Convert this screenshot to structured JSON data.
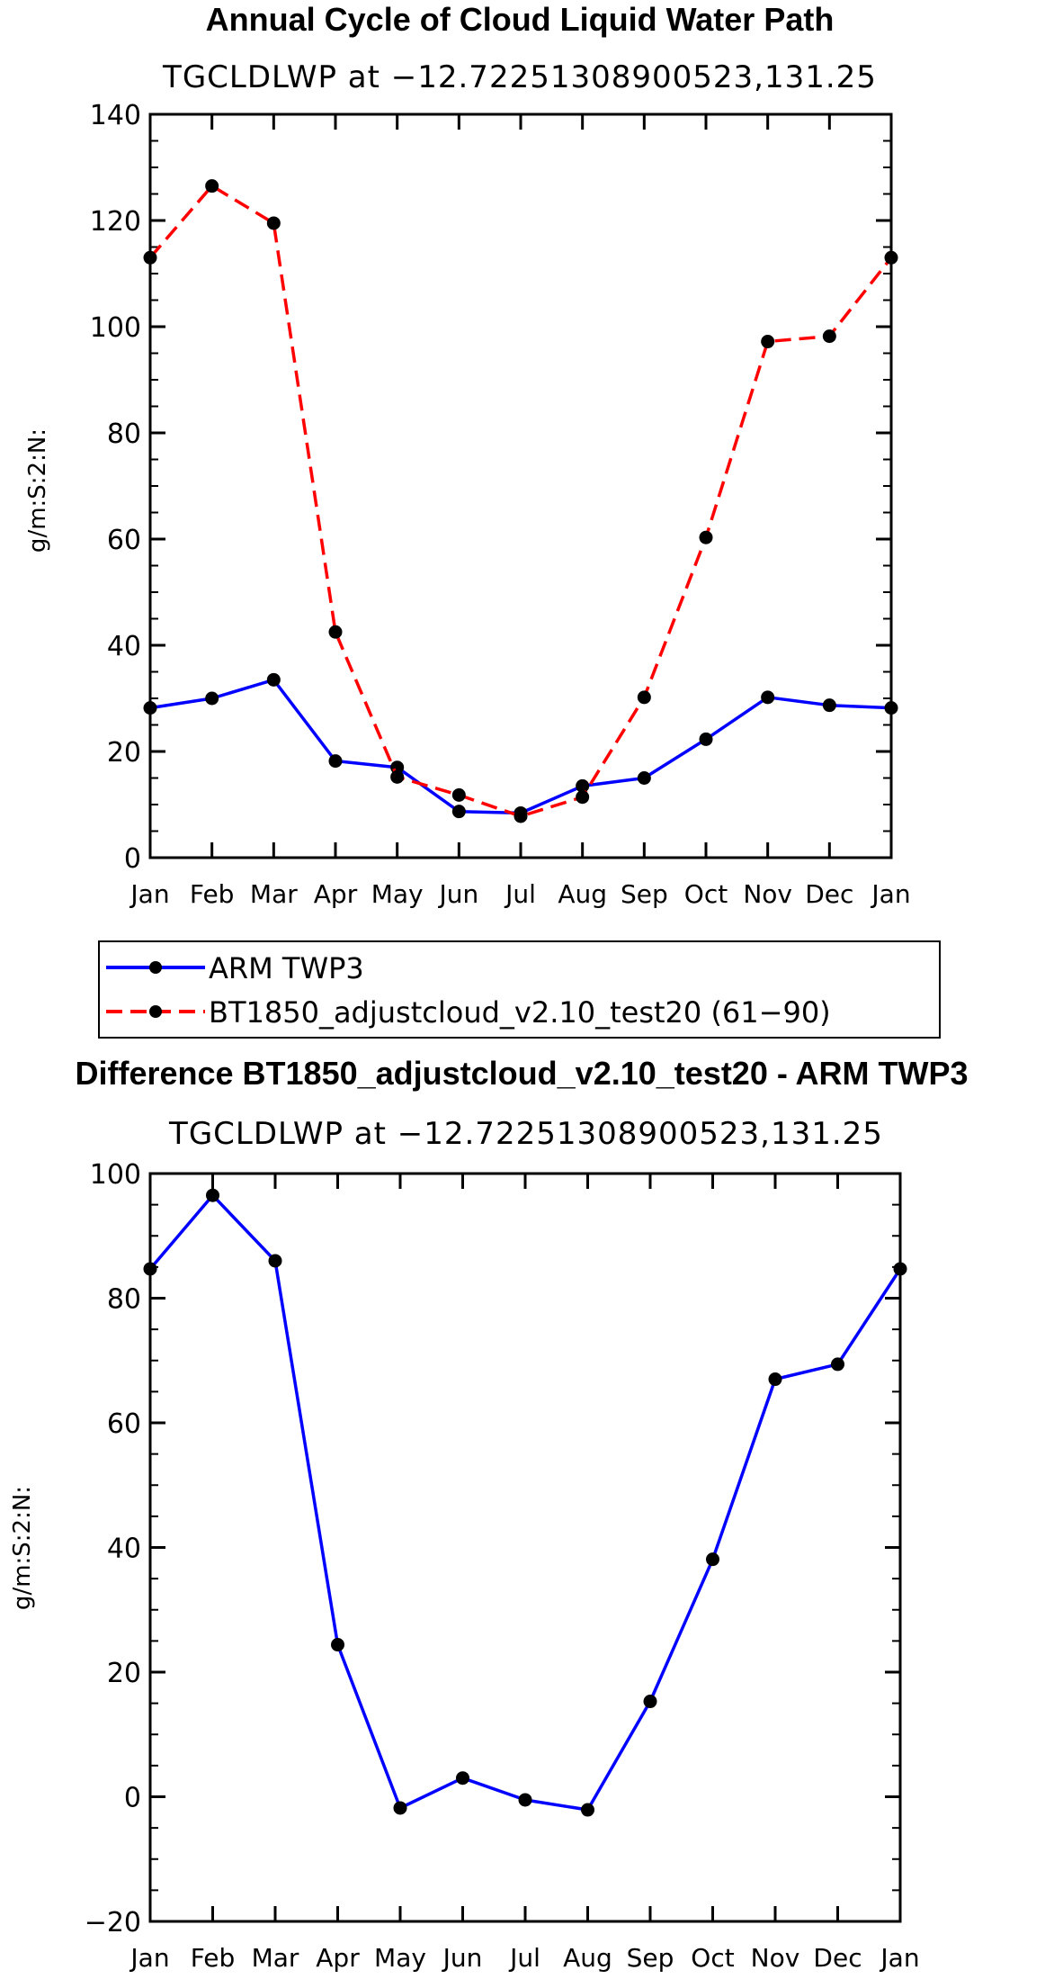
{
  "chart_data": [
    {
      "type": "line",
      "title": "Annual Cycle of Cloud Liquid Water Path",
      "subtitle": "TGCLDLWP at −12.72251308900523,131.25",
      "ylabel": "g/m:S:2:N:",
      "xlabel": "",
      "ylim": [
        0,
        140
      ],
      "yticks": [
        0,
        20,
        40,
        60,
        80,
        100,
        120,
        140
      ],
      "categories": [
        "Jan",
        "Feb",
        "Mar",
        "Apr",
        "May",
        "Jun",
        "Jul",
        "Aug",
        "Sep",
        "Oct",
        "Nov",
        "Dec",
        "Jan"
      ],
      "series": [
        {
          "name": "ARM TWP3",
          "color": "#0000ff",
          "style": "solid",
          "values": [
            28.2,
            30.0,
            33.5,
            18.2,
            17.0,
            8.7,
            8.4,
            13.5,
            15.0,
            22.3,
            30.2,
            28.7,
            28.2
          ]
        },
        {
          "name": "BT1850_adjustcloud_v2.10_test20 (61−90)",
          "color": "#ff0000",
          "style": "dashed",
          "values": [
            113.0,
            126.5,
            119.5,
            42.5,
            15.2,
            11.8,
            7.8,
            11.4,
            30.2,
            60.3,
            97.2,
            98.2,
            113.0
          ]
        }
      ],
      "legend": "below"
    },
    {
      "type": "line",
      "title": "Difference BT1850_adjustcloud_v2.10_test20 - ARM TWP3",
      "subtitle": "TGCLDLWP at −12.72251308900523,131.25",
      "ylabel": "g/m:S:2:N:",
      "xlabel": "",
      "ylim": [
        -20,
        100
      ],
      "yticks": [
        -20,
        0,
        20,
        40,
        60,
        80,
        100
      ],
      "categories": [
        "Jan",
        "Feb",
        "Mar",
        "Apr",
        "May",
        "Jun",
        "Jul",
        "Aug",
        "Sep",
        "Oct",
        "Nov",
        "Dec",
        "Jan"
      ],
      "series": [
        {
          "name": "Difference",
          "color": "#0000ff",
          "style": "solid",
          "values": [
            84.7,
            96.5,
            86.0,
            24.4,
            -1.8,
            3.0,
            -0.5,
            -2.1,
            15.3,
            38.1,
            67.0,
            69.4,
            84.7
          ]
        }
      ]
    }
  ]
}
